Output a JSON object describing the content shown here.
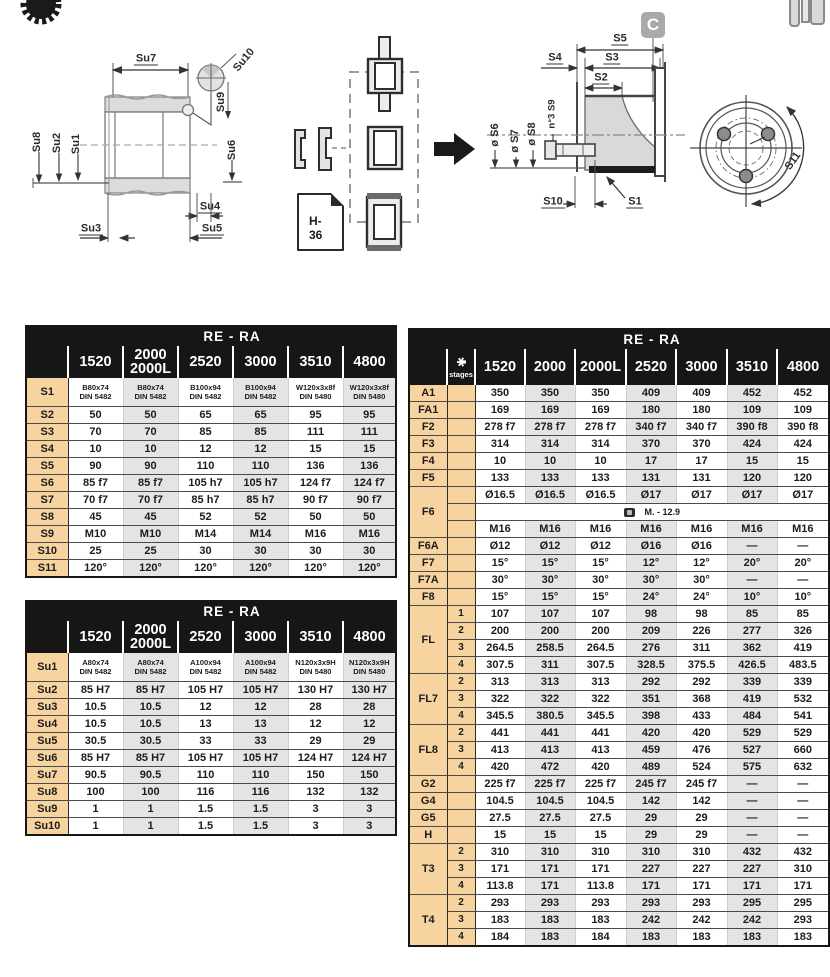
{
  "colors": {
    "header_bg": "#161616",
    "header_text": "#ffffff",
    "row_label_bg": "#f7d3a0",
    "band_bg": "#e4e4e4",
    "badge_grey": "#a9a9a9"
  },
  "icons": {
    "top_left": "gear-icon",
    "top_right": "coupling-icon",
    "stages_header": "gear-icon",
    "f6_note": "bolt-icon",
    "flow": "arrow-right-icon",
    "sheet": "document-icon"
  },
  "drawing_labels": {
    "left": {
      "su1": "Su1",
      "su2": "Su2",
      "su3": "Su3",
      "su4": "Su4",
      "su5": "Su5",
      "su6": "Su6",
      "su7": "Su7",
      "su8": "Su8",
      "su9": "Su9",
      "su10": "Su10"
    },
    "middle": {
      "doc": "H-36"
    },
    "right": {
      "s1": "S1",
      "s2": "S2",
      "s3": "S3",
      "s4": "S4",
      "s5": "S5",
      "s6": "ø S6",
      "s7": "ø S7",
      "s8": "ø S8",
      "s9": "n°3 S9",
      "s10": "S10",
      "c_badge": "C"
    },
    "end_view": {
      "s11": "S11"
    }
  },
  "tables": {
    "left_top": {
      "title": "RE - RA",
      "columns": [
        "1520",
        "2000\n2000L",
        "2520",
        "3000",
        "3510",
        "4800"
      ],
      "rows": [
        {
          "label": "S1",
          "tall": true,
          "values": [
            "B80x74\nDIN 5482",
            "B80x74\nDIN 5482",
            "B100x94\nDIN 5482",
            "B100x94\nDIN 5482",
            "W120x3x8f\nDIN 5480",
            "W120x3x8f\nDIN 5480"
          ]
        },
        {
          "label": "S2",
          "values": [
            "50",
            "50",
            "65",
            "65",
            "95",
            "95"
          ]
        },
        {
          "label": "S3",
          "values": [
            "70",
            "70",
            "85",
            "85",
            "111",
            "111"
          ]
        },
        {
          "label": "S4",
          "values": [
            "10",
            "10",
            "12",
            "12",
            "15",
            "15"
          ]
        },
        {
          "label": "S5",
          "values": [
            "90",
            "90",
            "110",
            "110",
            "136",
            "136"
          ]
        },
        {
          "label": "S6",
          "values": [
            "85 f7",
            "85 f7",
            "105 h7",
            "105 h7",
            "124 f7",
            "124 f7"
          ]
        },
        {
          "label": "S7",
          "values": [
            "70 f7",
            "70 f7",
            "85 h7",
            "85 h7",
            "90 f7",
            "90 f7"
          ]
        },
        {
          "label": "S8",
          "values": [
            "45",
            "45",
            "52",
            "52",
            "50",
            "50"
          ]
        },
        {
          "label": "S9",
          "values": [
            "M10",
            "M10",
            "M14",
            "M14",
            "M16",
            "M16"
          ]
        },
        {
          "label": "S10",
          "values": [
            "25",
            "25",
            "30",
            "30",
            "30",
            "30"
          ]
        },
        {
          "label": "S11",
          "values": [
            "120°",
            "120°",
            "120°",
            "120°",
            "120°",
            "120°"
          ]
        }
      ]
    },
    "left_bottom": {
      "title": "RE - RA",
      "columns": [
        "1520",
        "2000\n2000L",
        "2520",
        "3000",
        "3510",
        "4800"
      ],
      "rows": [
        {
          "label": "Su1",
          "tall": true,
          "values": [
            "A80x74\nDIN 5482",
            "A80x74\nDIN 5482",
            "A100x94\nDIN 5482",
            "A100x94\nDIN 5482",
            "N120x3x9H\nDIN 5480",
            "N120x3x9H\nDIN 5480"
          ]
        },
        {
          "label": "Su2",
          "values": [
            "85 H7",
            "85 H7",
            "105 H7",
            "105 H7",
            "130 H7",
            "130 H7"
          ]
        },
        {
          "label": "Su3",
          "values": [
            "10.5",
            "10.5",
            "12",
            "12",
            "28",
            "28"
          ]
        },
        {
          "label": "Su4",
          "values": [
            "10.5",
            "10.5",
            "13",
            "13",
            "12",
            "12"
          ]
        },
        {
          "label": "Su5",
          "values": [
            "30.5",
            "30.5",
            "33",
            "33",
            "29",
            "29"
          ]
        },
        {
          "label": "Su6",
          "values": [
            "85 H7",
            "85 H7",
            "105 H7",
            "105 H7",
            "124 H7",
            "124 H7"
          ]
        },
        {
          "label": "Su7",
          "values": [
            "90.5",
            "90.5",
            "110",
            "110",
            "150",
            "150"
          ]
        },
        {
          "label": "Su8",
          "values": [
            "100",
            "100",
            "116",
            "116",
            "132",
            "132"
          ]
        },
        {
          "label": "Su9",
          "values": [
            "1",
            "1",
            "1.5",
            "1.5",
            "3",
            "3"
          ]
        },
        {
          "label": "Su10",
          "values": [
            "1",
            "1",
            "1.5",
            "1.5",
            "3",
            "3"
          ]
        }
      ]
    },
    "right": {
      "title": "RE - RA",
      "stages_label": "stages",
      "columns": [
        "1520",
        "2000",
        "2000L",
        "2520",
        "3000",
        "3510",
        "4800"
      ],
      "groups": [
        {
          "label": "A1",
          "rows": [
            {
              "stage": "",
              "values": [
                "350",
                "350",
                "350",
                "409",
                "409",
                "452",
                "452"
              ]
            }
          ]
        },
        {
          "label": "FA1",
          "rows": [
            {
              "stage": "",
              "values": [
                "169",
                "169",
                "169",
                "180",
                "180",
                "109",
                "109"
              ]
            }
          ]
        },
        {
          "label": "F2",
          "rows": [
            {
              "stage": "",
              "values": [
                "278 f7",
                "278 f7",
                "278 f7",
                "340 f7",
                "340 f7",
                "390 f8",
                "390 f8"
              ]
            }
          ]
        },
        {
          "label": "F3",
          "rows": [
            {
              "stage": "",
              "values": [
                "314",
                "314",
                "314",
                "370",
                "370",
                "424",
                "424"
              ]
            }
          ]
        },
        {
          "label": "F4",
          "rows": [
            {
              "stage": "",
              "values": [
                "10",
                "10",
                "10",
                "17",
                "17",
                "15",
                "15"
              ]
            }
          ]
        },
        {
          "label": "F5",
          "rows": [
            {
              "stage": "",
              "values": [
                "133",
                "133",
                "133",
                "131",
                "131",
                "120",
                "120"
              ]
            }
          ]
        },
        {
          "label": "F6",
          "rows": [
            {
              "stage": "",
              "values": [
                "Ø16.5",
                "Ø16.5",
                "Ø16.5",
                "Ø17",
                "Ø17",
                "Ø17",
                "Ø17"
              ]
            },
            {
              "stage": "",
              "span_text": "M. - 12.9"
            },
            {
              "stage": "",
              "values": [
                "M16",
                "M16",
                "M16",
                "M16",
                "M16",
                "M16",
                "M16"
              ]
            }
          ]
        },
        {
          "label": "F6A",
          "rows": [
            {
              "stage": "",
              "values": [
                "Ø12",
                "Ø12",
                "Ø12",
                "Ø16",
                "Ø16",
                "—",
                "—"
              ]
            }
          ]
        },
        {
          "label": "F7",
          "rows": [
            {
              "stage": "",
              "values": [
                "15°",
                "15°",
                "15°",
                "12°",
                "12°",
                "20°",
                "20°"
              ]
            }
          ]
        },
        {
          "label": "F7A",
          "rows": [
            {
              "stage": "",
              "values": [
                "30°",
                "30°",
                "30°",
                "30°",
                "30°",
                "—",
                "—"
              ]
            }
          ]
        },
        {
          "label": "F8",
          "rows": [
            {
              "stage": "",
              "values": [
                "15°",
                "15°",
                "15°",
                "24°",
                "24°",
                "10°",
                "10°"
              ]
            }
          ]
        },
        {
          "label": "FL",
          "rows": [
            {
              "stage": "1",
              "values": [
                "107",
                "107",
                "107",
                "98",
                "98",
                "85",
                "85"
              ]
            },
            {
              "stage": "2",
              "values": [
                "200",
                "200",
                "200",
                "209",
                "226",
                "277",
                "326"
              ]
            },
            {
              "stage": "3",
              "values": [
                "264.5",
                "258.5",
                "264.5",
                "276",
                "311",
                "362",
                "419"
              ]
            },
            {
              "stage": "4",
              "values": [
                "307.5",
                "311",
                "307.5",
                "328.5",
                "375.5",
                "426.5",
                "483.5"
              ]
            }
          ]
        },
        {
          "label": "FL7",
          "rows": [
            {
              "stage": "2",
              "values": [
                "313",
                "313",
                "313",
                "292",
                "292",
                "339",
                "339"
              ]
            },
            {
              "stage": "3",
              "values": [
                "322",
                "322",
                "322",
                "351",
                "368",
                "419",
                "532"
              ]
            },
            {
              "stage": "4",
              "values": [
                "345.5",
                "380.5",
                "345.5",
                "398",
                "433",
                "484",
                "541"
              ]
            }
          ]
        },
        {
          "label": "FL8",
          "rows": [
            {
              "stage": "2",
              "values": [
                "441",
                "441",
                "441",
                "420",
                "420",
                "529",
                "529"
              ]
            },
            {
              "stage": "3",
              "values": [
                "413",
                "413",
                "413",
                "459",
                "476",
                "527",
                "660"
              ]
            },
            {
              "stage": "4",
              "values": [
                "420",
                "472",
                "420",
                "489",
                "524",
                "575",
                "632"
              ]
            }
          ]
        },
        {
          "label": "G2",
          "rows": [
            {
              "stage": "",
              "values": [
                "225 f7",
                "225 f7",
                "225 f7",
                "245 f7",
                "245 f7",
                "—",
                "—"
              ]
            }
          ]
        },
        {
          "label": "G4",
          "rows": [
            {
              "stage": "",
              "values": [
                "104.5",
                "104.5",
                "104.5",
                "142",
                "142",
                "—",
                "—"
              ]
            }
          ]
        },
        {
          "label": "G5",
          "rows": [
            {
              "stage": "",
              "values": [
                "27.5",
                "27.5",
                "27.5",
                "29",
                "29",
                "—",
                "—"
              ]
            }
          ]
        },
        {
          "label": "H",
          "rows": [
            {
              "stage": "",
              "values": [
                "15",
                "15",
                "15",
                "29",
                "29",
                "—",
                "—"
              ]
            }
          ]
        },
        {
          "label": "T3",
          "rows": [
            {
              "stage": "2",
              "values": [
                "310",
                "310",
                "310",
                "310",
                "310",
                "432",
                "432"
              ]
            },
            {
              "stage": "3",
              "values": [
                "171",
                "171",
                "171",
                "227",
                "227",
                "227",
                "310"
              ]
            },
            {
              "stage": "4",
              "values": [
                "113.8",
                "171",
                "113.8",
                "171",
                "171",
                "171",
                "171"
              ]
            }
          ]
        },
        {
          "label": "T4",
          "rows": [
            {
              "stage": "2",
              "values": [
                "293",
                "293",
                "293",
                "293",
                "293",
                "295",
                "295"
              ]
            },
            {
              "stage": "3",
              "values": [
                "183",
                "183",
                "183",
                "242",
                "242",
                "242",
                "293"
              ]
            },
            {
              "stage": "4",
              "values": [
                "184",
                "183",
                "184",
                "183",
                "183",
                "183",
                "183"
              ]
            }
          ]
        }
      ]
    }
  }
}
